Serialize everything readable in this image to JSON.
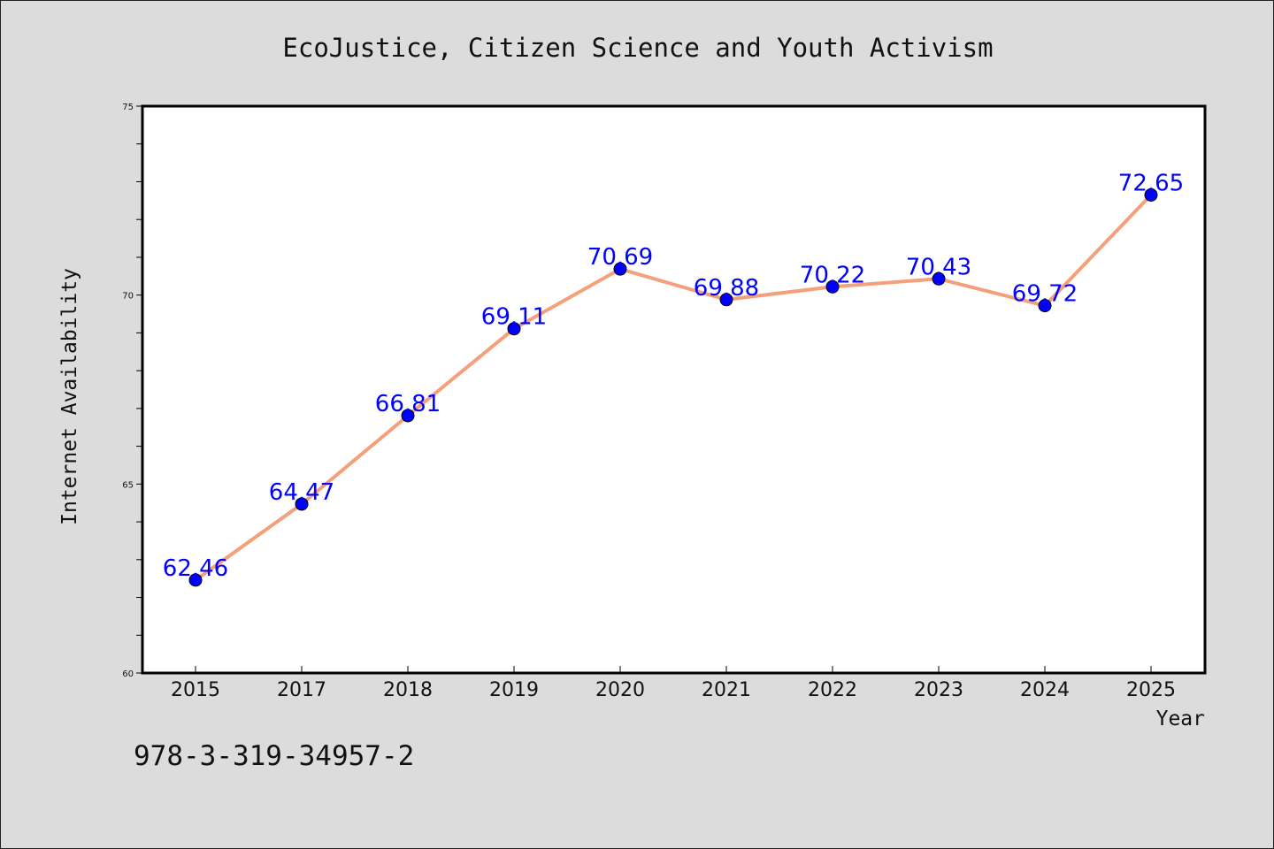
{
  "chart_data": {
    "type": "line",
    "title": "EcoJustice, Citizen Science and Youth Activism",
    "xlabel": "Year",
    "ylabel": "Internet Availability",
    "categories": [
      "2015",
      "2017",
      "2018",
      "2019",
      "2020",
      "2021",
      "2022",
      "2023",
      "2024",
      "2025"
    ],
    "series": [
      {
        "values": [
          62.46,
          64.47,
          66.81,
          69.11,
          70.69,
          69.88,
          70.22,
          70.43,
          69.72,
          72.65
        ],
        "labels": [
          "62.46",
          "64.47",
          "66.81",
          "69.11",
          "70.69",
          "69.88",
          "70.22",
          "70.43",
          "69.72",
          "72.65"
        ],
        "line_color": "#f4a07a",
        "marker_color": "#0000ff",
        "label_color": "#0000ff"
      }
    ],
    "ylim": [
      60,
      75
    ],
    "y_ticks": [
      "60",
      "65",
      "70",
      "75"
    ],
    "grid": false,
    "legend": "none"
  },
  "footer": {
    "isbn": "978-3-319-34957-2"
  }
}
